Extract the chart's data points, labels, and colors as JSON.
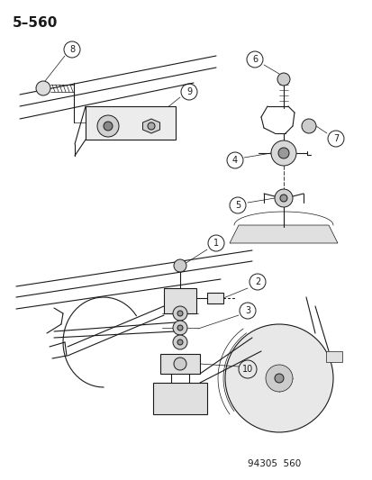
{
  "title": "5–560",
  "footer": "94305  560",
  "bg": "#ffffff",
  "lc": "#1a1a1a",
  "title_fs": 11,
  "footer_fs": 7.5,
  "label_fs": 7,
  "callout_r": 0.02
}
